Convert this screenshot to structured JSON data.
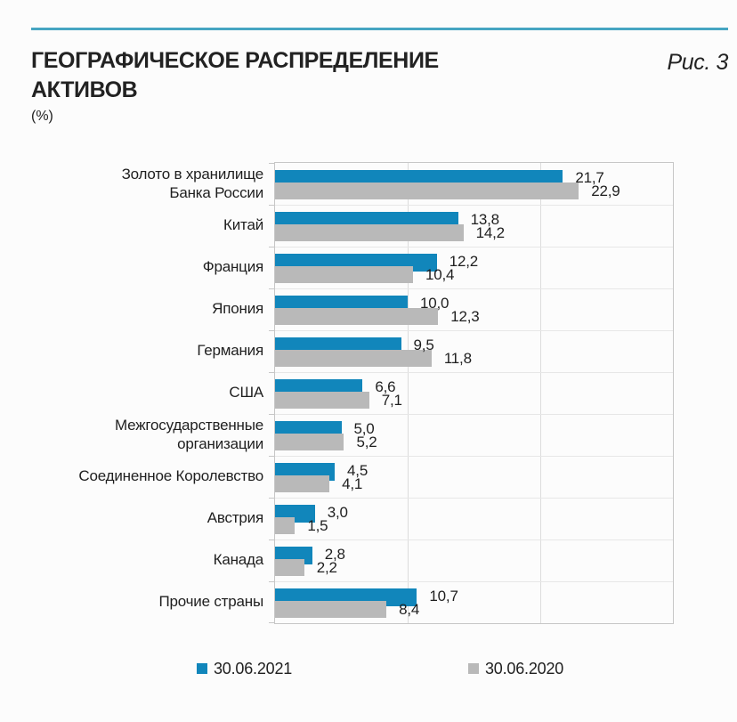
{
  "page": {
    "title_line1": "ГЕОГРАФИЧЕСКОЕ РАСПРЕДЕЛЕНИЕ",
    "title_line2": "АКТИВОВ",
    "unit": "(%)",
    "figure_label": "Рис. 3"
  },
  "colors": {
    "accent_rule": "#46A5C2",
    "series_2021": "#1186BB",
    "series_2020": "#B9B9B9",
    "gridline": "#DCDCDC",
    "row_line": "#E7E7E7",
    "plot_border": "#C7C7C7",
    "text": "#1F1F1F"
  },
  "chart_data": {
    "type": "bar",
    "orientation": "horizontal",
    "title": "ГЕОГРАФИЧЕСКОЕ РАСПРЕДЕЛЕНИЕ АКТИВОВ",
    "subtitle": "Рис. 3",
    "unit": "%",
    "xlabel": "",
    "ylabel": "",
    "xlim": [
      0,
      30
    ],
    "gridlines_at": [
      10,
      20
    ],
    "grid": true,
    "legend_position": "bottom",
    "categories": [
      "Золото в хранилище Банка России",
      "Китай",
      "Франция",
      "Япония",
      "Германия",
      "США",
      "Межгосударственные организации",
      "Соединенное Королевство",
      "Австрия",
      "Канада",
      "Прочие страны"
    ],
    "categories_display": [
      [
        "Золото в хранилище",
        "Банка России"
      ],
      [
        "Китай"
      ],
      [
        "Франция"
      ],
      [
        "Япония"
      ],
      [
        "Германия"
      ],
      [
        "США"
      ],
      [
        "Межгосударственные",
        "организации"
      ],
      [
        "Соединенное Королевство"
      ],
      [
        "Австрия"
      ],
      [
        "Канада"
      ],
      [
        "Прочие страны"
      ]
    ],
    "series": [
      {
        "name": "30.06.2021",
        "color": "#1186BB",
        "values": [
          21.7,
          13.8,
          12.2,
          10.0,
          9.5,
          6.6,
          5.0,
          4.5,
          3.0,
          2.8,
          10.7
        ],
        "labels": [
          "21,7",
          "13,8",
          "12,2",
          "10,0",
          "9,5",
          "6,6",
          "5,0",
          "4,5",
          "3,0",
          "2,8",
          "10,7"
        ]
      },
      {
        "name": "30.06.2020",
        "color": "#B9B9B9",
        "values": [
          22.9,
          14.2,
          10.4,
          12.3,
          11.8,
          7.1,
          5.2,
          4.1,
          1.5,
          2.2,
          8.4
        ],
        "labels": [
          "22,9",
          "14,2",
          "10,4",
          "12,3",
          "11,8",
          "7,1",
          "5,2",
          "4,1",
          "1,5",
          "2,2",
          "8,4"
        ]
      }
    ]
  }
}
